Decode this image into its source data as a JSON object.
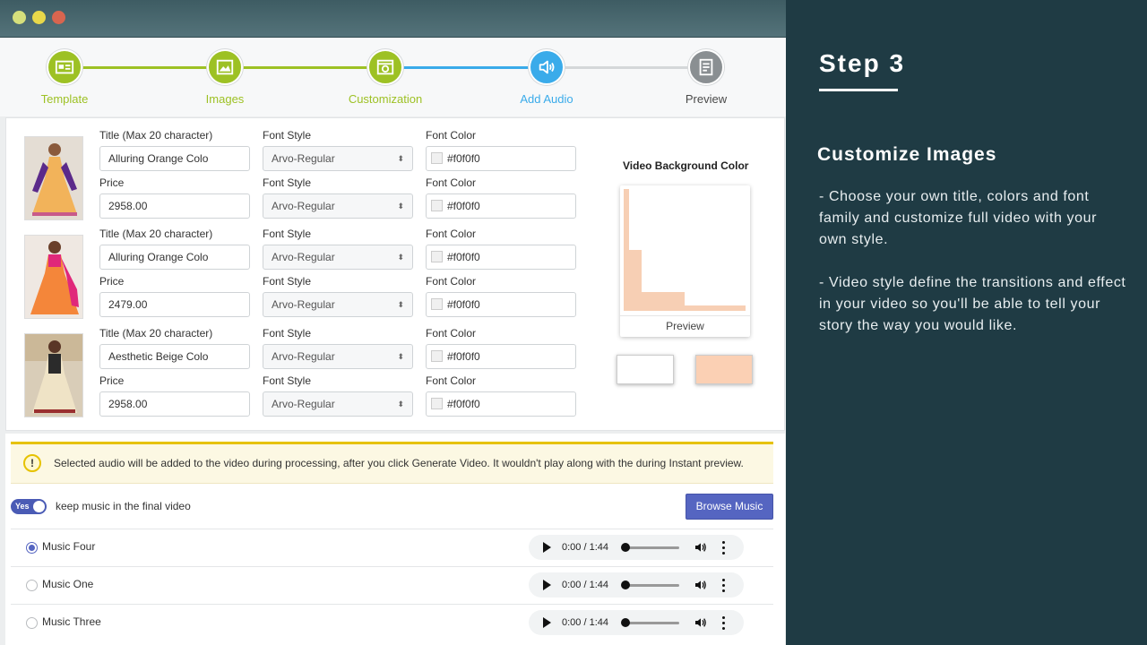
{
  "steps": [
    {
      "label": "Template",
      "state": "done"
    },
    {
      "label": "Images",
      "state": "done"
    },
    {
      "label": "Customization",
      "state": "done"
    },
    {
      "label": "Add Audio",
      "state": "active"
    },
    {
      "label": "Preview",
      "state": "todo"
    }
  ],
  "items": [
    {
      "title_label": "Title (Max 20 character)",
      "title_value": "Alluring Orange Colo",
      "price_label": "Price",
      "price_value": "2958.00",
      "font_style_label": "Font Style",
      "title_font": "Arvo-Regular",
      "price_font": "Arvo-Regular",
      "font_color_label": "Font Color",
      "title_color": "#f0f0f0",
      "price_color": "#f0f0f0"
    },
    {
      "title_label": "Title (Max 20 character)",
      "title_value": "Alluring Orange Colo",
      "price_label": "Price",
      "price_value": "2479.00",
      "font_style_label": "Font Style",
      "title_font": "Arvo-Regular",
      "price_font": "Arvo-Regular",
      "font_color_label": "Font Color",
      "title_color": "#f0f0f0",
      "price_color": "#f0f0f0"
    },
    {
      "title_label": "Title (Max 20 character)",
      "title_value": "Aesthetic Beige Colo",
      "price_label": "Price",
      "price_value": "2958.00",
      "font_style_label": "Font Style",
      "title_font": "Arvo-Regular",
      "price_font": "Arvo-Regular",
      "font_color_label": "Font Color",
      "title_color": "#f0f0f0",
      "price_color": "#f0f0f0"
    }
  ],
  "video_bg": {
    "title": "Video Background Color",
    "preview_label": "Preview",
    "swatches": [
      "#ffffff",
      "#fbd0b4"
    ]
  },
  "audio": {
    "notice": "Selected audio will be added to the video during processing, after you click Generate Video. It wouldn't play along with the during Instant preview.",
    "toggle_label": "Yes",
    "keep_label": "keep music in the final video",
    "browse_label": "Browse Music",
    "tracks": [
      {
        "name": "Music Four",
        "selected": true,
        "time": "0:00 / 1:44"
      },
      {
        "name": "Music One",
        "selected": false,
        "time": "0:00 / 1:44"
      },
      {
        "name": "Music Three",
        "selected": false,
        "time": "0:00 / 1:44"
      }
    ]
  },
  "info": {
    "step_title": "Step 3",
    "subtitle": "Customize Images",
    "para1": "- Choose your own title, colors and font family and customize full video with your own style.",
    "para2": "- Video style define the transitions and effect in your video so you'll be able to tell your story the way you would like."
  },
  "colors": {
    "done": "#9dc124",
    "active": "#3aabea",
    "todo": "#8a8f92",
    "accent": "#5565c1",
    "info_bg": "#1f3b44"
  }
}
